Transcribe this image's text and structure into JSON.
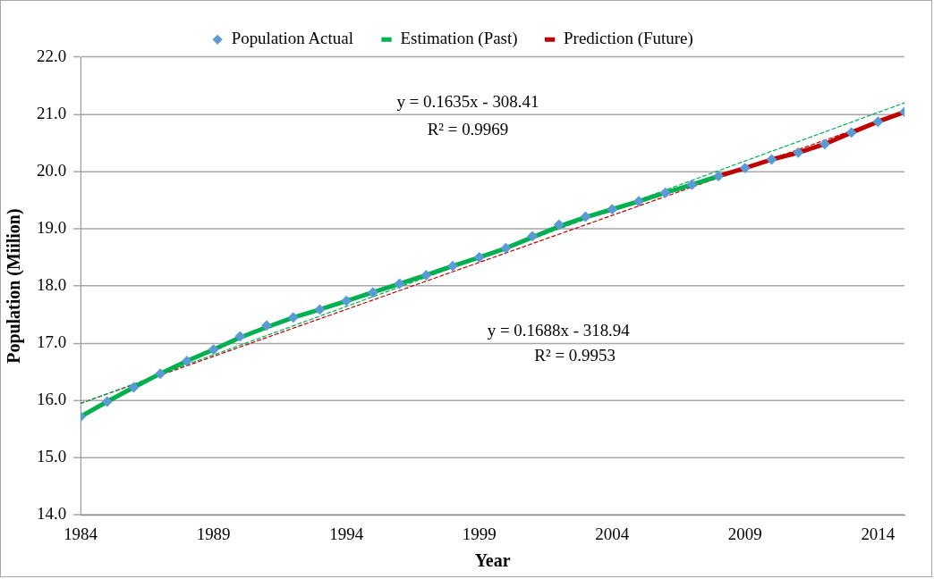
{
  "chart_data": {
    "type": "line",
    "xlabel": "Year",
    "ylabel": "Population (Miilion)",
    "xlim": [
      1984,
      2015
    ],
    "xticks": [
      1984,
      1989,
      1994,
      1999,
      2004,
      2009,
      2014
    ],
    "ylim": [
      14,
      22
    ],
    "yticks": [
      {
        "value": 14,
        "label": "14.0"
      },
      {
        "value": 15,
        "label": "15.0"
      },
      {
        "value": 16,
        "label": "16.0"
      },
      {
        "value": 17,
        "label": "17.0"
      },
      {
        "value": 18,
        "label": "18.0"
      },
      {
        "value": 19,
        "label": "19.0"
      },
      {
        "value": 20,
        "label": "20.0"
      },
      {
        "value": 21,
        "label": "21.0"
      },
      {
        "value": 22,
        "label": "22.0"
      }
    ],
    "grid": "y",
    "legend": "top",
    "series": [
      {
        "name": "Population Actual",
        "type": "scatter",
        "marker": "diamond",
        "color": "#5b9bd5",
        "x": [
          1984,
          1985,
          1986,
          1987,
          1988,
          1989,
          1990,
          1991,
          1992,
          1993,
          1994,
          1995,
          1996,
          1997,
          1998,
          1999,
          2000,
          2001,
          2002,
          2003,
          2004,
          2005,
          2006,
          2007,
          2008,
          2009,
          2010,
          2011,
          2012,
          2013,
          2014,
          2015
        ],
        "values": [
          15.72,
          15.98,
          16.23,
          16.47,
          16.69,
          16.89,
          17.12,
          17.31,
          17.45,
          17.59,
          17.74,
          17.89,
          18.04,
          18.19,
          18.35,
          18.5,
          18.66,
          18.87,
          19.07,
          19.21,
          19.34,
          19.48,
          19.63,
          19.77,
          19.92,
          20.06,
          20.21,
          20.33,
          20.48,
          20.68,
          20.87,
          21.04
        ]
      },
      {
        "name": "Estimation (Past)",
        "type": "line",
        "line_style": "solid",
        "color": "#00b050",
        "x": [
          1984,
          1985,
          1986,
          1987,
          1988,
          1989,
          1990,
          1991,
          1992,
          1993,
          1994,
          1995,
          1996,
          1997,
          1998,
          1999,
          2000,
          2001,
          2002,
          2003,
          2004,
          2005,
          2006,
          2007,
          2008
        ],
        "values": [
          15.72,
          15.98,
          16.23,
          16.47,
          16.69,
          16.89,
          17.1,
          17.28,
          17.45,
          17.59,
          17.74,
          17.89,
          18.04,
          18.19,
          18.35,
          18.5,
          18.66,
          18.85,
          19.04,
          19.2,
          19.34,
          19.48,
          19.63,
          19.77,
          19.92
        ]
      },
      {
        "name": "Prediction (Future)",
        "type": "line",
        "line_style": "solid",
        "color": "#c00000",
        "x": [
          2008,
          2009,
          2010,
          2011,
          2012,
          2013,
          2014,
          2015
        ],
        "values": [
          19.92,
          20.06,
          20.21,
          20.33,
          20.48,
          20.68,
          20.87,
          21.04
        ]
      },
      {
        "type": "line",
        "line_style": "dashed",
        "color": "#00b050",
        "x": [
          1984,
          2015
        ],
        "values": [
          15.95,
          21.2
        ]
      },
      {
        "type": "line",
        "line_style": "dashed",
        "color": "#c00000",
        "x": [
          1984,
          2015
        ],
        "values": [
          15.95,
          21.04
        ]
      }
    ],
    "annotations": [
      "y = 0.1635x - 308.41",
      "R² = 0.9969",
      "y = 0.1688x - 318.94",
      "R² = 0.9953"
    ]
  }
}
